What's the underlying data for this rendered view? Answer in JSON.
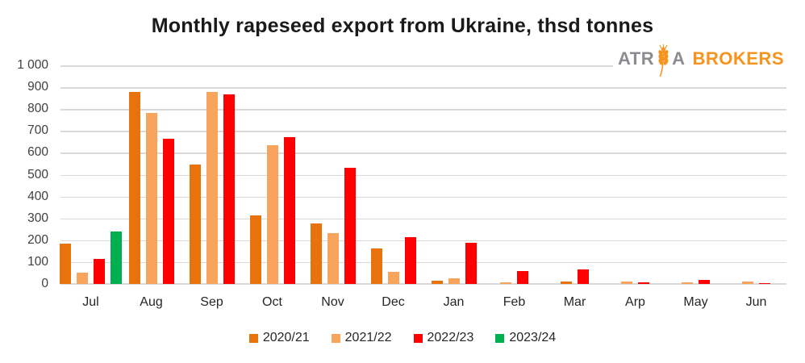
{
  "title": "Monthly rapeseed export from Ukraine, thsd tonnes",
  "logo": {
    "text_gray_1": "ATR",
    "text_gray_2": "A",
    "text_orange": "BROKERS",
    "icon": "wheat-ear-icon",
    "color_gray": "#8A8C8F",
    "color_orange": "#F7941E"
  },
  "chart_data": {
    "type": "bar",
    "title": "Monthly rapeseed export from Ukraine, thsd tonnes",
    "units": "thsd tonnes",
    "categories": [
      "Jul",
      "Aug",
      "Sep",
      "Oct",
      "Nov",
      "Dec",
      "Jan",
      "Feb",
      "Mar",
      "Arp",
      "May",
      "Jun"
    ],
    "series": [
      {
        "name": "2020/21",
        "color": "#E8730D",
        "values": [
          185,
          880,
          548,
          315,
          275,
          163,
          13,
          null,
          12,
          null,
          null,
          null
        ]
      },
      {
        "name": "2021/22",
        "color": "#F9A45C",
        "values": [
          50,
          783,
          880,
          633,
          232,
          55,
          25,
          8,
          null,
          12,
          7,
          12
        ]
      },
      {
        "name": "2022/23",
        "color": "#FF0000",
        "values": [
          115,
          665,
          868,
          670,
          530,
          213,
          190,
          60,
          65,
          7,
          20,
          5
        ]
      },
      {
        "name": "2023/24",
        "color": "#00B050",
        "values": [
          240,
          null,
          null,
          null,
          null,
          null,
          null,
          null,
          null,
          null,
          null,
          null
        ]
      }
    ],
    "ylim": [
      0,
      1000
    ],
    "ytick_step": 100,
    "ytick_labels": [
      "0",
      "100",
      "200",
      "300",
      "400",
      "500",
      "600",
      "700",
      "800",
      "900",
      "1 000"
    ],
    "grid": true,
    "gridline_color": "#D9D9D9",
    "legend_position": "bottom"
  }
}
